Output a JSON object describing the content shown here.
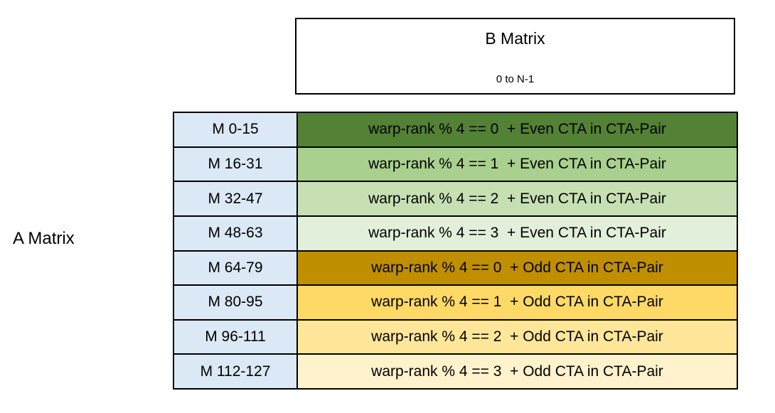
{
  "a_matrix": {
    "label": "A Matrix"
  },
  "b_matrix": {
    "title": "B Matrix",
    "subtitle": "0 to N-1"
  },
  "colors": {
    "label_column_bg": "#dbe8f5",
    "border": "#000000",
    "background": "#ffffff"
  },
  "table": {
    "rows": [
      {
        "label": "M 0-15",
        "value": "warp-rank % 4 == 0  + Even CTA in CTA-Pair",
        "color": "#538135"
      },
      {
        "label": "M 16-31",
        "value": "warp-rank % 4 == 1  + Even CTA in CTA-Pair",
        "color": "#a9d08e"
      },
      {
        "label": "M 32-47",
        "value": "warp-rank % 4 == 2  + Even CTA in CTA-Pair",
        "color": "#c6e0b4"
      },
      {
        "label": "M 48-63",
        "value": "warp-rank % 4 == 3  + Even CTA in CTA-Pair",
        "color": "#e2efda"
      },
      {
        "label": "M 64-79",
        "value": "warp-rank % 4 == 0  + Odd CTA in CTA-Pair",
        "color": "#bf8f00"
      },
      {
        "label": "M 80-95",
        "value": "warp-rank % 4 == 1  + Odd CTA in CTA-Pair",
        "color": "#ffd966"
      },
      {
        "label": "M 96-111",
        "value": "warp-rank % 4 == 2  + Odd CTA in CTA-Pair",
        "color": "#ffe699"
      },
      {
        "label": "M 112-127",
        "value": "warp-rank % 4 == 3  + Odd CTA in CTA-Pair",
        "color": "#fff2cc"
      }
    ]
  }
}
